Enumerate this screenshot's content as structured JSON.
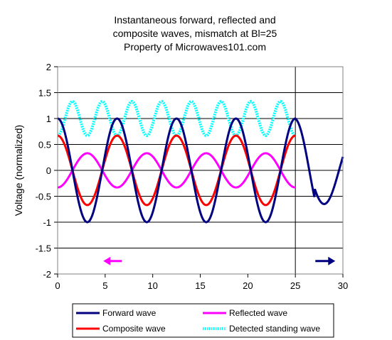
{
  "chart_data": {
    "type": "line",
    "title": [
      "Instantaneous forward, reflected and",
      "composite waves, mismatch at Bl=25",
      "Property of Microwaves101.com"
    ],
    "xlabel": "",
    "ylabel": "Voltage (normalized)",
    "xlim": [
      0,
      30
    ],
    "ylim": [
      -2,
      2
    ],
    "xticks": [
      "0",
      "5",
      "10",
      "15",
      "20",
      "25",
      "30"
    ],
    "yticks": [
      "2",
      "1.5",
      "1",
      "0.5",
      "0",
      "-0.5",
      "-1",
      "-1.5",
      "-2"
    ],
    "grid": "horizontal",
    "legend_position": "bottom",
    "mismatch_x": 25,
    "wave_period": 6.25,
    "series": [
      {
        "name": "Forward wave",
        "color": "#000080",
        "note_amplitude": 1,
        "x": [
          0,
          3.125,
          6.25,
          9.375,
          12.5,
          15.625,
          18.75,
          21.875,
          25,
          28.125,
          30
        ],
        "y": [
          1,
          -1,
          1,
          -1,
          1,
          -1,
          1,
          -1,
          1,
          -0.65,
          0.2
        ]
      },
      {
        "name": "Reflected wave",
        "color": "#ff00ff",
        "x": [
          0,
          1.5625,
          4.6875,
          7.8125,
          10.9375,
          14.0625,
          17.1875,
          20.3125,
          23.4375,
          25
        ],
        "y": [
          -0.33,
          0.33,
          -0.33,
          0.33,
          -0.33,
          0.33,
          -0.33,
          0.33,
          -0.33,
          -0.33
        ]
      },
      {
        "name": "Composite wave",
        "color": "#ff0000",
        "x": [
          0,
          3.125,
          6.25,
          9.375,
          12.5,
          15.625,
          18.75,
          21.875,
          25
        ],
        "y": [
          0.67,
          -0.67,
          0.67,
          -0.67,
          0.67,
          -0.67,
          0.67,
          -0.67,
          0.67
        ]
      },
      {
        "name": "Detected standing wave",
        "color": "#00ffff",
        "x": [
          0,
          1.5625,
          3.125,
          4.6875,
          6.25,
          7.8125,
          9.375,
          10.9375,
          12.5,
          14.0625,
          15.625,
          17.1875,
          18.75,
          20.3125,
          21.875,
          23.4375,
          25
        ],
        "y": [
          0.67,
          1.33,
          0.67,
          1.33,
          0.67,
          1.33,
          0.67,
          1.33,
          0.67,
          1.33,
          0.67,
          1.33,
          0.67,
          1.33,
          0.67,
          1.33,
          0.67
        ]
      }
    ],
    "annotations": [
      {
        "name": "reflected-direction-arrow",
        "direction": "left",
        "color": "#ff00ff",
        "x": 6,
        "y": -1.75
      },
      {
        "name": "forward-direction-arrow",
        "direction": "right",
        "color": "#000080",
        "x": 28,
        "y": -1.75
      }
    ]
  }
}
